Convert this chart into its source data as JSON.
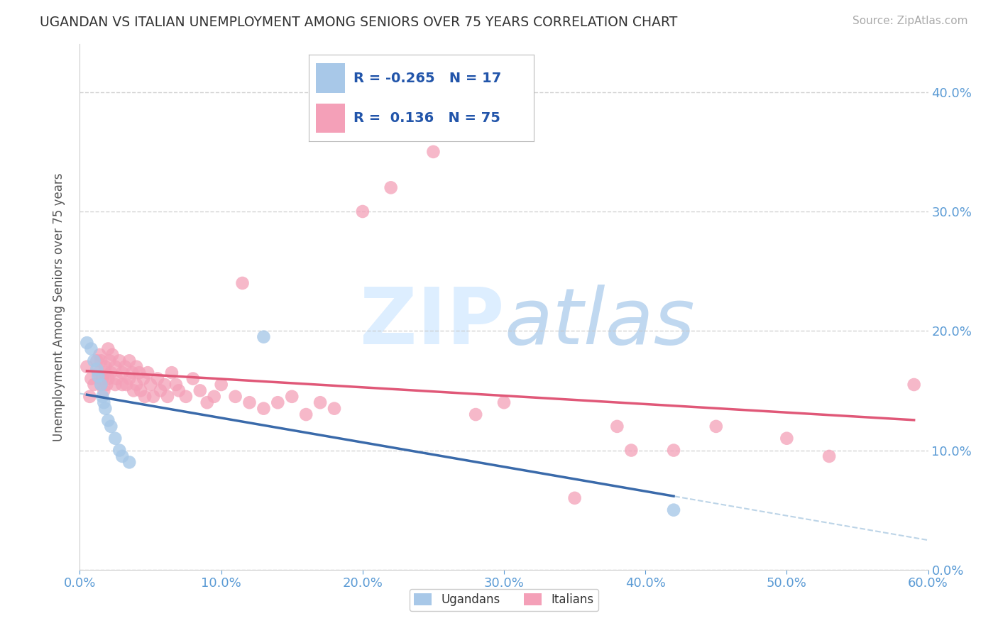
{
  "title": "UGANDAN VS ITALIAN UNEMPLOYMENT AMONG SENIORS OVER 75 YEARS CORRELATION CHART",
  "source": "Source: ZipAtlas.com",
  "ylabel": "Unemployment Among Seniors over 75 years",
  "ugandan_label": "Ugandans",
  "italian_label": "Italians",
  "ugandan_R": -0.265,
  "ugandan_N": 17,
  "italian_R": 0.136,
  "italian_N": 75,
  "ugandan_color": "#a8c8e8",
  "italian_color": "#f4a0b8",
  "ugandan_line_color": "#3a6aaa",
  "ugandan_line_dash_color": "#90b8d8",
  "italian_line_color": "#e05878",
  "background_color": "#ffffff",
  "axis_label_color": "#5b9bd5",
  "grid_color": "#c8c8c8",
  "watermark_color": "#ddeeff",
  "xlim": [
    0.0,
    0.6
  ],
  "ylim": [
    0.0,
    0.44
  ],
  "xticks": [
    0.0,
    0.1,
    0.2,
    0.3,
    0.4,
    0.5,
    0.6
  ],
  "yticks": [
    0.0,
    0.1,
    0.2,
    0.3,
    0.4
  ],
  "ugandan_x": [
    0.005,
    0.008,
    0.01,
    0.012,
    0.013,
    0.015,
    0.016,
    0.017,
    0.018,
    0.02,
    0.022,
    0.025,
    0.028,
    0.03,
    0.035,
    0.13,
    0.42
  ],
  "ugandan_y": [
    0.19,
    0.185,
    0.175,
    0.168,
    0.162,
    0.155,
    0.145,
    0.14,
    0.135,
    0.125,
    0.12,
    0.11,
    0.1,
    0.095,
    0.09,
    0.195,
    0.05
  ],
  "italian_x": [
    0.005,
    0.007,
    0.008,
    0.01,
    0.012,
    0.013,
    0.014,
    0.015,
    0.015,
    0.016,
    0.017,
    0.018,
    0.018,
    0.019,
    0.02,
    0.02,
    0.021,
    0.022,
    0.023,
    0.025,
    0.025,
    0.026,
    0.028,
    0.03,
    0.03,
    0.032,
    0.033,
    0.035,
    0.035,
    0.037,
    0.038,
    0.04,
    0.04,
    0.042,
    0.043,
    0.045,
    0.046,
    0.048,
    0.05,
    0.052,
    0.055,
    0.057,
    0.06,
    0.062,
    0.065,
    0.068,
    0.07,
    0.075,
    0.08,
    0.085,
    0.09,
    0.095,
    0.1,
    0.11,
    0.115,
    0.12,
    0.13,
    0.14,
    0.15,
    0.16,
    0.17,
    0.18,
    0.2,
    0.22,
    0.25,
    0.28,
    0.3,
    0.35,
    0.38,
    0.39,
    0.42,
    0.45,
    0.5,
    0.53,
    0.59
  ],
  "italian_y": [
    0.17,
    0.145,
    0.16,
    0.155,
    0.175,
    0.165,
    0.18,
    0.175,
    0.155,
    0.16,
    0.15,
    0.165,
    0.17,
    0.155,
    0.16,
    0.185,
    0.175,
    0.165,
    0.18,
    0.17,
    0.155,
    0.16,
    0.175,
    0.165,
    0.155,
    0.17,
    0.155,
    0.175,
    0.16,
    0.165,
    0.15,
    0.17,
    0.155,
    0.165,
    0.15,
    0.16,
    0.145,
    0.165,
    0.155,
    0.145,
    0.16,
    0.15,
    0.155,
    0.145,
    0.165,
    0.155,
    0.15,
    0.145,
    0.16,
    0.15,
    0.14,
    0.145,
    0.155,
    0.145,
    0.24,
    0.14,
    0.135,
    0.14,
    0.145,
    0.13,
    0.14,
    0.135,
    0.3,
    0.32,
    0.35,
    0.13,
    0.14,
    0.06,
    0.12,
    0.1,
    0.1,
    0.12,
    0.11,
    0.095,
    0.155
  ],
  "ugandan_trend_x0": 0.0,
  "ugandan_trend_x1": 0.6,
  "italian_trend_x0": 0.0,
  "italian_trend_x1": 0.6
}
